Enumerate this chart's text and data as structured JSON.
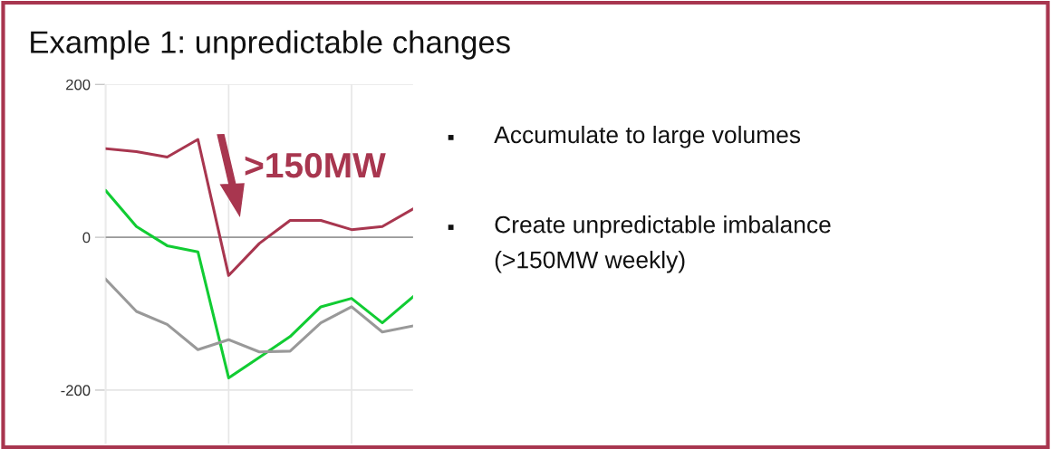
{
  "chart_data": {
    "type": "line",
    "title": "Example 1: unpredictable changes",
    "categories": [
      null,
      null,
      null,
      null,
      null,
      null,
      null,
      null,
      null,
      null,
      null
    ],
    "series": [
      {
        "color": "#a8364f",
        "values": [
          116,
          112,
          105,
          128,
          -50,
          -8,
          22,
          22,
          10,
          14,
          37
        ]
      },
      {
        "color": "#11cc33",
        "values": [
          61,
          14,
          -11,
          -19,
          -184,
          -157,
          -130,
          -91,
          -80,
          -112,
          -78
        ]
      },
      {
        "color": "#999999",
        "values": [
          -55,
          -97,
          -114,
          -147,
          -134,
          -150,
          -149,
          -112,
          -91,
          -124,
          -116
        ]
      }
    ],
    "ylim": [
      -270,
      200
    ],
    "yticks": [
      -200,
      0,
      200
    ],
    "grid": true,
    "tick_labels": "y",
    "ref_lines": [
      {
        "axis": "y",
        "value": 0,
        "color": "#9a9a9a"
      }
    ],
    "annotations": [
      ">150MW",
      "Accumulate to large volumes",
      "Create unpredictable imbalance\n(>150MW weekly)"
    ]
  }
}
